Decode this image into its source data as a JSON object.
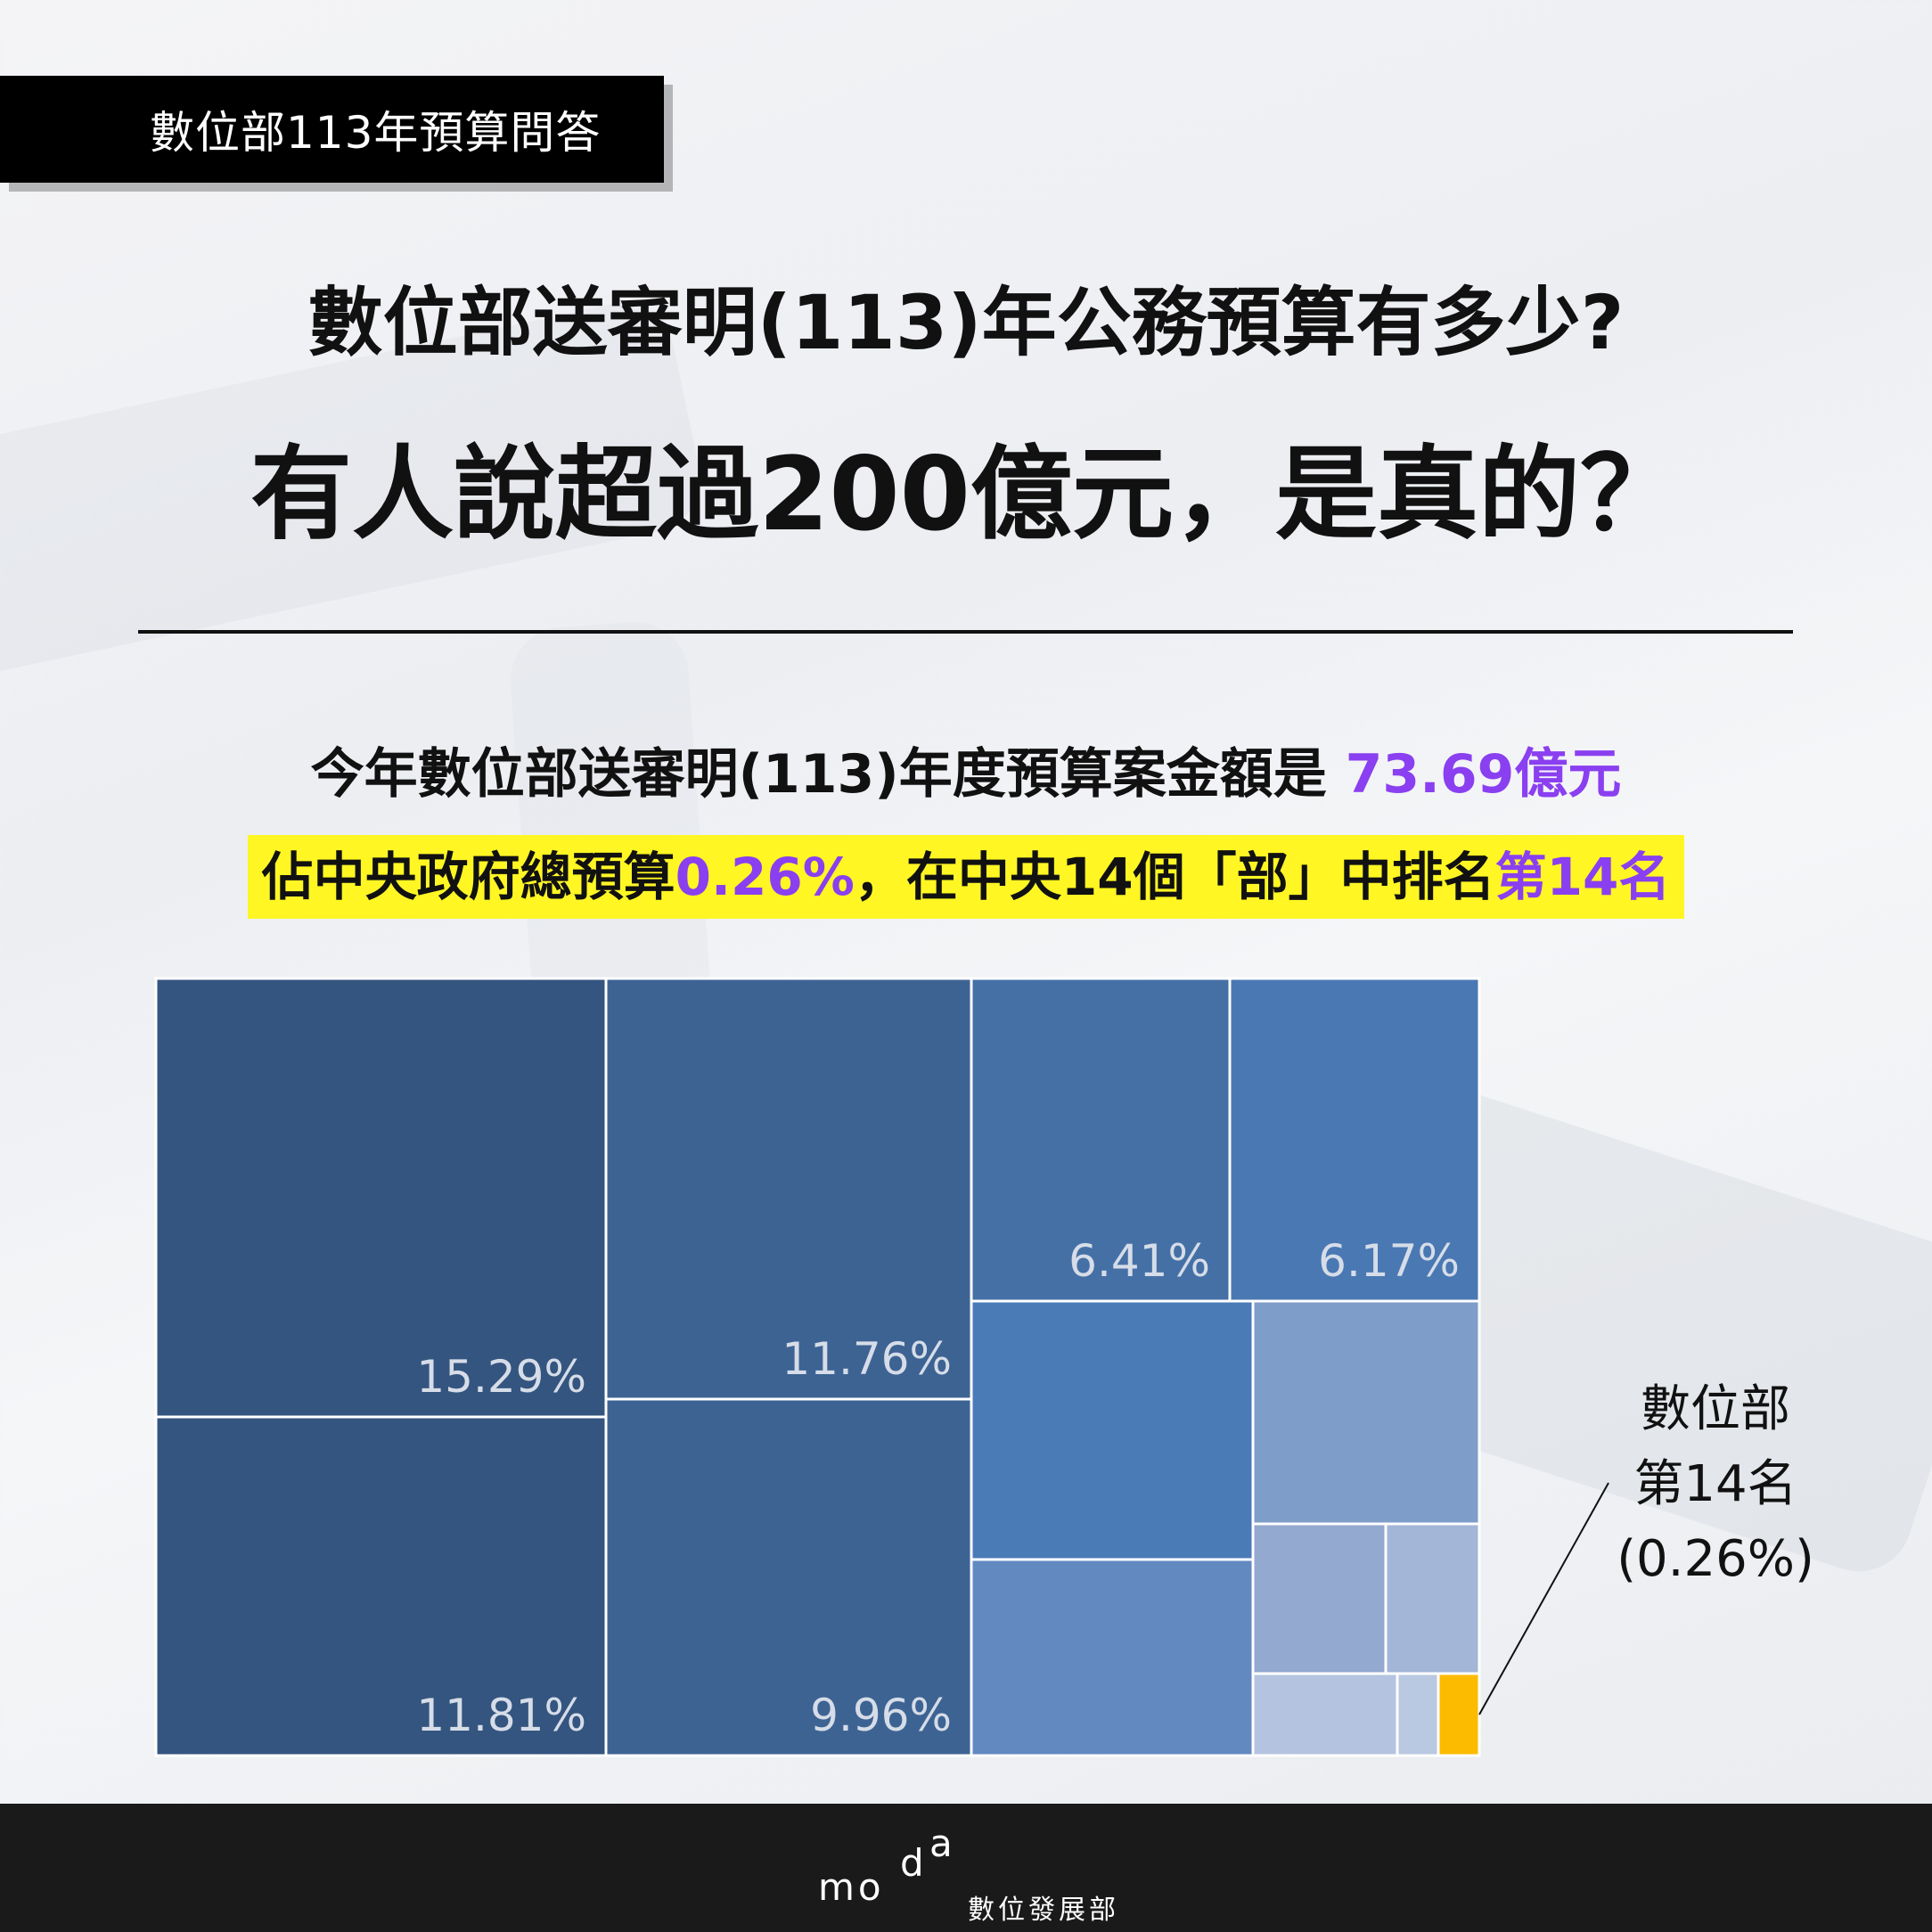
{
  "tag": "數位部113年預算問答",
  "title_line1": "數位部送審明(113)年公務預算有多少?",
  "title_line2": "有人說超過200億元，是真的？",
  "subtitle": {
    "prefix": "今年數位部送審明(113)年度預算案金額是 ",
    "amount": "73.69億元"
  },
  "highlight": {
    "part1": "佔中央政府總預算",
    "pct": "0.26%",
    "part2": "，在中央14個「部」中排名",
    "rank": "第14名"
  },
  "annotation": {
    "line1": "數位部",
    "line2": "第14名",
    "line3": "(0.26%)"
  },
  "footer": {
    "logo_m": "mo",
    "logo_d": "d",
    "logo_a": "a",
    "logo_text": "數位發展部"
  },
  "chart_data": {
    "type": "treemap",
    "colors": {
      "dark": "#34557f",
      "mid": "#3f6594",
      "blue": "#4a78b3",
      "light": "#7d9bc8",
      "pale": "#a8bcd9",
      "highlight": "#fdbb00"
    },
    "cells": [
      {
        "label": "15.29%",
        "value": 15.29,
        "color": "#34557f"
      },
      {
        "label": "11.81%",
        "value": 11.81,
        "color": "#34557f"
      },
      {
        "label": "11.76%",
        "value": 11.76,
        "color": "#3d6393"
      },
      {
        "label": "9.96%",
        "value": 9.96,
        "color": "#3d6393"
      },
      {
        "label": "6.41%",
        "value": 6.41,
        "color": "#4570a6"
      },
      {
        "label": "6.17%",
        "value": 6.17,
        "color": "#4a78b3"
      },
      {
        "label": "",
        "value": null,
        "color": "#4a7bb7"
      },
      {
        "label": "",
        "value": null,
        "color": "#6389c1"
      },
      {
        "label": "",
        "value": null,
        "color": "#7f9dc9"
      },
      {
        "label": "",
        "value": null,
        "color": "#94a9cf"
      },
      {
        "label": "",
        "value": null,
        "color": "#a3b6d7"
      },
      {
        "label": "",
        "value": null,
        "color": "#b4c4e0"
      },
      {
        "label": "",
        "value": null,
        "color": "#bac9e2"
      },
      {
        "label": "數位部",
        "value": 0.26,
        "color": "#fdbb00"
      }
    ]
  }
}
